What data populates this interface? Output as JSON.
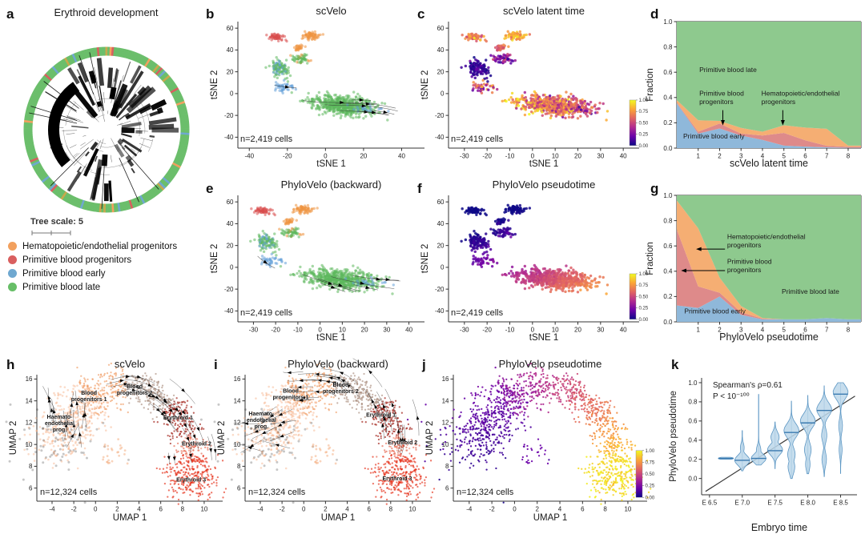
{
  "panels": {
    "a": {
      "letter": "a",
      "title": "Erythroid development",
      "tree_scale": "Tree scale: 5",
      "legend": [
        {
          "label": "Hematopoietic/endothelial progenitors",
          "color": "#F2A05E"
        },
        {
          "label": "Primitive blood progenitors",
          "color": "#D95F5F"
        },
        {
          "label": "Primitive blood early",
          "color": "#6FA8D0"
        },
        {
          "label": "Primitive blood late",
          "color": "#67BE67"
        }
      ]
    },
    "b": {
      "letter": "b",
      "title": "scVelo",
      "xlabel": "tSNE 1",
      "ylabel": "tSNE 2",
      "n_label": "n=2,419 cells"
    },
    "c": {
      "letter": "c",
      "title": "scVelo latent time",
      "xlabel": "tSNE 1",
      "ylabel": "tSNE 2",
      "n_label": "n=2,419 cells"
    },
    "d": {
      "letter": "d",
      "title": "",
      "xlabel": "scVelo latent time",
      "ylabel": "Fraction"
    },
    "e": {
      "letter": "e",
      "title": "PhyloVelo (backward)",
      "xlabel": "tSNE 1",
      "ylabel": "tSNE 2",
      "n_label": "n=2,419 cells"
    },
    "f": {
      "letter": "f",
      "title": "PhyloVelo pseudotime",
      "xlabel": "tSNE 1",
      "ylabel": "tSNE 2",
      "n_label": "n=2,419 cells"
    },
    "g": {
      "letter": "g",
      "title": "",
      "xlabel": "PhyloVelo pseudotime",
      "ylabel": "Fraction"
    },
    "h": {
      "letter": "h",
      "title": "scVelo",
      "xlabel": "UMAP 1",
      "ylabel": "UMAP 2",
      "n_label": "n=12,324 cells"
    },
    "i": {
      "letter": "i",
      "title": "PhyloVelo (backward)",
      "xlabel": "UMAP 1",
      "ylabel": "UMAP 2",
      "n_label": "n=12,324 cells"
    },
    "j": {
      "letter": "j",
      "title": "PhyloVelo pseudotime",
      "xlabel": "UMAP 1",
      "ylabel": "UMAP 2",
      "n_label": "n=12,324 cells"
    },
    "k": {
      "letter": "k",
      "title": "",
      "xlabel": "Embryo time",
      "ylabel": "PhyloVelo pseudotime",
      "stat_line1": "Spearman's ρ=0.61",
      "stat_line2": "P < 10⁻¹⁰⁰"
    }
  },
  "colors": {
    "class_green": "#5CB85C",
    "class_red": "#D84C4C",
    "class_orange": "#EF9440",
    "class_blue": "#64A1D8",
    "area_blue": "#8FB8DA",
    "area_red": "#DE8A8A",
    "area_orange": "#F5AE73",
    "area_green": "#8EC98E",
    "violin_fill": "#BCD7EA",
    "violin_stroke": "#5D97C4",
    "trend_line": "#3a3a3a",
    "plasma": [
      "#0d0887",
      "#6a00a8",
      "#b12a90",
      "#e16462",
      "#fca636",
      "#f0f921"
    ],
    "umap": {
      "hae": "#F7AF85",
      "sparse": "#F3A979",
      "bp1": "#F09B62",
      "bp2": "#AB8E7E",
      "ery1": "#9E180F",
      "ery2": "#E4634C",
      "ery2b": "#F28C74",
      "ery3": "#E52D15"
    },
    "ring_green": "#6BBE6B",
    "ring_flecks": [
      "#F2A05E",
      "#D95F5F",
      "#6FA8D0",
      "#C9A84C"
    ]
  },
  "chart_data": {
    "tsne_axes": {
      "b_xticks": [
        -40,
        -20,
        0,
        20,
        40
      ],
      "cef_xticks": [
        -30,
        -20,
        -10,
        0,
        10,
        20,
        30,
        40
      ],
      "yticks": [
        -40,
        -20,
        0,
        20,
        40,
        60
      ],
      "b_xlim": [
        -46,
        52
      ],
      "cef_xlim": [
        -37,
        47
      ],
      "ylim": [
        -50,
        66
      ]
    },
    "umap_axes": {
      "xticks": [
        -4,
        -2,
        0,
        2,
        4,
        6,
        8,
        10
      ],
      "yticks": [
        6,
        8,
        10,
        12,
        14,
        16
      ],
      "xlim": [
        -5.4,
        11.7
      ],
      "ylim": [
        4.8,
        16.4
      ]
    },
    "colorbar_ticks": [
      "1.00",
      "0.75",
      "0.50",
      "0.25",
      "0.00"
    ],
    "tsne_clusters": [
      {
        "cx": 9,
        "cy": -11,
        "sx": 16.5,
        "sy": 8.5,
        "rot": -12,
        "n": 560,
        "cls": "green",
        "tc": {
          "g": "x",
          "t0": 0.92,
          "t1": 0.4,
          "no": 0.17
        }
      },
      {
        "cx": -24,
        "cy": 23,
        "sx": 4.5,
        "sy": 8.5,
        "rot": 18,
        "n": 120,
        "cls": "green_blue",
        "tc": {
          "g": "c",
          "t": 0.1,
          "no": 0.07
        }
      },
      {
        "cx": -13,
        "cy": 32,
        "sx": 4.5,
        "sy": 4.5,
        "rot": 0,
        "n": 60,
        "cls": "green_orange",
        "tc": {
          "g": "c",
          "t": 0.3,
          "no": 0.12
        }
      },
      {
        "cx": -26,
        "cy": 52,
        "sx": 4.2,
        "sy": 3.0,
        "rot": -8,
        "n": 55,
        "cls": "red",
        "tc": {
          "g": "c",
          "t": 0.72,
          "no": 0.12
        }
      },
      {
        "cx": -8,
        "cy": 53,
        "sx": 4.8,
        "sy": 3.8,
        "rot": 0,
        "n": 65,
        "cls": "orange",
        "tc": {
          "g": "c",
          "t": 0.8,
          "no": 0.08
        }
      },
      {
        "cx": -14,
        "cy": 42,
        "sx": 3.2,
        "sy": 2.6,
        "rot": 0,
        "n": 28,
        "cls": "orange",
        "tc": {
          "g": "c",
          "t": 0.65,
          "no": 0.1
        }
      },
      {
        "cx": -22,
        "cy": 6,
        "sx": 6,
        "sy": 6,
        "rot": 0,
        "n": 40,
        "cls": "blue",
        "tc": {
          "g": "c",
          "t": 0.5,
          "no": 0.2
        }
      },
      {
        "cx": 24,
        "cy": -14,
        "sx": 11,
        "sy": 5,
        "rot": -10,
        "n": 22,
        "cls": "blue",
        "tc": {
          "g": "c",
          "t": 0.45,
          "no": 0.2
        }
      }
    ],
    "pseudotime_grad": {
      "x0": -38,
      "xs": 86,
      "wx": 0.6,
      "y0": 16,
      "ys": 72,
      "wy": 0.5,
      "base": 0.03,
      "no": 0.03
    },
    "stacked_d": {
      "x": [
        0,
        1,
        2,
        3,
        4,
        5,
        6,
        7,
        8,
        8.6
      ],
      "xticks": [
        1,
        2,
        3,
        4,
        5,
        6,
        7,
        8
      ],
      "yticks": [
        0.0,
        0.2,
        0.4,
        0.6,
        0.8,
        1.0
      ],
      "series": [
        {
          "name": "Primitive blood early",
          "key": "area_blue",
          "v": [
            0.355,
            0.115,
            0.155,
            0.1,
            0.065,
            0.02,
            0.012,
            0.006,
            0.002,
            0.002
          ]
        },
        {
          "name": "Primitive blood progenitors",
          "key": "area_red",
          "v": [
            0.005,
            0.015,
            0.04,
            0.015,
            0.035,
            0.1,
            0.05,
            0.012,
            0.008,
            0.008
          ]
        },
        {
          "name": "Hematopoietic/endothelial progenitors",
          "key": "area_orange",
          "v": [
            0.02,
            0.09,
            0.02,
            0.045,
            0.03,
            0.06,
            0.1,
            0.135,
            0.01,
            0.01
          ]
        },
        {
          "name": "Primitive blood late",
          "key": "area_green",
          "v": null
        }
      ],
      "annotations": [
        {
          "lines": [
            "Primitive blood late"
          ],
          "x": 1.05,
          "y": 0.6
        },
        {
          "lines": [
            "Primitive blood",
            "progenitors"
          ],
          "x": 1.05,
          "y": 0.415,
          "arrow": {
            "x1": 2.15,
            "y1": 0.3,
            "x2": 2.15,
            "y2": 0.205
          }
        },
        {
          "lines": [
            "Hematopoietic/endothelial",
            "progenitors"
          ],
          "x": 3.95,
          "y": 0.415,
          "arrow": {
            "x1": 4.95,
            "y1": 0.3,
            "x2": 4.95,
            "y2": 0.205
          }
        },
        {
          "lines": [
            "Primitive blood early"
          ],
          "x": 0.3,
          "y": 0.075
        }
      ]
    },
    "stacked_g": {
      "x": [
        0,
        1,
        2,
        3,
        4,
        5,
        6,
        7,
        8,
        8.6
      ],
      "xticks": [
        1,
        2,
        3,
        4,
        5,
        6,
        7,
        8
      ],
      "yticks": [
        0.0,
        0.2,
        0.4,
        0.6,
        0.8,
        1.0
      ],
      "series": [
        {
          "name": "Primitive blood early",
          "key": "area_blue",
          "v": [
            0.13,
            0.11,
            0.2,
            0.055,
            0.02,
            0.02,
            0.02,
            0.03,
            0.02,
            0.02
          ]
        },
        {
          "name": "Primitive blood progenitors",
          "key": "area_red",
          "v": [
            0.6,
            0.17,
            0.03,
            0.02,
            0.005,
            0.0,
            0.0,
            0.0,
            0.0,
            0.0
          ]
        },
        {
          "name": "Hematopoietic/endothelial progenitors",
          "key": "area_orange",
          "v": [
            0.23,
            0.46,
            0.12,
            0.05,
            0.005,
            0.0,
            0.0,
            0.0,
            0.0,
            0.0
          ]
        },
        {
          "name": "Primitive blood late",
          "key": "area_green",
          "v": null
        }
      ],
      "annotations": [
        {
          "lines": [
            "Hematopoietic/endothelial",
            "progenitors"
          ],
          "x": 2.35,
          "y": 0.655,
          "arrow": {
            "x1": 2.25,
            "y1": 0.575,
            "x2": 1.05,
            "y2": 0.575
          }
        },
        {
          "lines": [
            "Primitive blood",
            "progenitors"
          ],
          "x": 2.35,
          "y": 0.46,
          "arrow": {
            "x1": 2.25,
            "y1": 0.405,
            "x2": 0.35,
            "y2": 0.405
          }
        },
        {
          "lines": [
            "Primitive blood late"
          ],
          "x": 4.9,
          "y": 0.22
        },
        {
          "lines": [
            "Primitive blood early"
          ],
          "x": 0.35,
          "y": 0.065
        }
      ]
    },
    "umap_arch": {
      "spline": [
        [
          -1.0,
          14.2
        ],
        [
          1.2,
          15.0
        ],
        [
          3.3,
          15.35
        ],
        [
          5.3,
          14.6
        ],
        [
          6.9,
          13.3
        ],
        [
          8.2,
          11.6
        ],
        [
          8.95,
          9.9
        ],
        [
          9.15,
          8.3
        ]
      ],
      "class_breaks": {
        "bp1": 0.25,
        "bp2": 0.55,
        "ery1": 0.78,
        "ery2": 0.93
      },
      "bottom_blob": {
        "cx": 8.75,
        "cy": 6.9,
        "sx": 1.25,
        "sy": 0.95,
        "n": 260
      },
      "arch_n": 700,
      "left_blob_n": 420,
      "halo_n": 80,
      "sparse_n": 25,
      "j_grad": {
        "arch_a": 0.26,
        "arch_b": 0.66,
        "blob_t": 0.93,
        "left_a": 0.08,
        "left_b": 0.14,
        "sparse_t": 0.2
      }
    },
    "umap_labels_h": [
      {
        "lines": [
          "Blood",
          "progenitors 1"
        ],
        "x": -0.6,
        "y": 14.55
      },
      {
        "lines": [
          "Blood",
          "progenitors 2"
        ],
        "x": 3.6,
        "y": 15.15
      },
      {
        "lines": [
          "Haemato-",
          "endothelial",
          "prog."
        ],
        "x": -3.3,
        "y": 12.35
      },
      {
        "lines": [
          "Erythroid 1"
        ],
        "x": 7.6,
        "y": 12.3
      },
      {
        "lines": [
          "Erythroid 2"
        ],
        "x": 9.3,
        "y": 9.9
      },
      {
        "lines": [
          "Erythroid 3"
        ],
        "x": 8.8,
        "y": 6.6
      }
    ],
    "umap_labels_i": [
      {
        "lines": [
          "Blood",
          "progenitors 1"
        ],
        "x": -1.2,
        "y": 14.75
      },
      {
        "lines": [
          "Blood",
          "progenitors 2"
        ],
        "x": 3.4,
        "y": 15.3
      },
      {
        "lines": [
          "Haemato-",
          "endothelial",
          "prog."
        ],
        "x": -3.9,
        "y": 12.65
      },
      {
        "lines": [
          "Erythroid 1"
        ],
        "x": 7.1,
        "y": 12.55
      },
      {
        "lines": [
          "Erythroid 2"
        ],
        "x": 9.1,
        "y": 10.0
      },
      {
        "lines": [
          "Erythroid 3"
        ],
        "x": 8.6,
        "y": 6.7
      }
    ],
    "violin_k": {
      "type": "violin",
      "xlim": [
        6.38,
        8.75
      ],
      "ylim": [
        -0.17,
        1.05
      ],
      "xticks": [
        6.5,
        7.0,
        7.5,
        8.0,
        8.5
      ],
      "xticklabels": [
        "E 6.5",
        "E 7.0",
        "E 7.5",
        "E 8.0",
        "E 8.5"
      ],
      "yticks": [
        0.0,
        0.2,
        0.4,
        0.6,
        0.8,
        1.0
      ],
      "max_halfwidth": 0.115,
      "violins": [
        {
          "x": 6.75,
          "min": 0.2,
          "max": 0.222,
          "median": 0.21,
          "bumps": [
            {
              "y": 0.21,
              "w": 1
            }
          ],
          "sigma": 0.012
        },
        {
          "x": 7.0,
          "min": 0.08,
          "max": 0.5,
          "median": 0.19,
          "bumps": [
            {
              "y": 0.19,
              "w": 1
            },
            {
              "y": 0.32,
              "w": 0.25
            }
          ],
          "sigma": 0.05
        },
        {
          "x": 7.25,
          "min": 0.14,
          "max": 0.88,
          "median": 0.21,
          "bumps": [
            {
              "y": 0.21,
              "w": 1
            },
            {
              "y": 0.3,
              "w": 0.3
            }
          ],
          "sigma": 0.045
        },
        {
          "x": 7.5,
          "min": 0.1,
          "max": 0.59,
          "median": 0.29,
          "bumps": [
            {
              "y": 0.3,
              "w": 1
            },
            {
              "y": 0.43,
              "w": 0.55
            }
          ],
          "sigma": 0.055
        },
        {
          "x": 7.75,
          "min": 0.0,
          "max": 0.81,
          "median": 0.48,
          "bumps": [
            {
              "y": 0.5,
              "w": 1
            },
            {
              "y": 0.25,
              "w": 0.5
            },
            {
              "y": 0.12,
              "w": 0.45
            }
          ],
          "sigma": 0.07
        },
        {
          "x": 8.0,
          "min": 0.05,
          "max": 0.87,
          "median": 0.58,
          "bumps": [
            {
              "y": 0.6,
              "w": 1
            },
            {
              "y": 0.3,
              "w": 0.45
            },
            {
              "y": 0.15,
              "w": 0.3
            }
          ],
          "sigma": 0.07
        },
        {
          "x": 8.25,
          "min": 0.02,
          "max": 0.97,
          "median": 0.71,
          "bumps": [
            {
              "y": 0.72,
              "w": 1
            },
            {
              "y": 0.45,
              "w": 0.35
            },
            {
              "y": 0.2,
              "w": 0.3
            }
          ],
          "sigma": 0.07
        },
        {
          "x": 8.5,
          "min": 0.05,
          "max": 1.0,
          "median": 0.88,
          "bumps": [
            {
              "y": 0.9,
              "w": 1
            },
            {
              "y": 0.55,
              "w": 0.25
            },
            {
              "y": 0.3,
              "w": 0.2
            }
          ],
          "sigma": 0.07
        }
      ],
      "trend": {
        "x1": 6.44,
        "y1": -0.135,
        "x2": 8.72,
        "y2": 0.86
      },
      "spearman_rho": 0.61
    }
  }
}
